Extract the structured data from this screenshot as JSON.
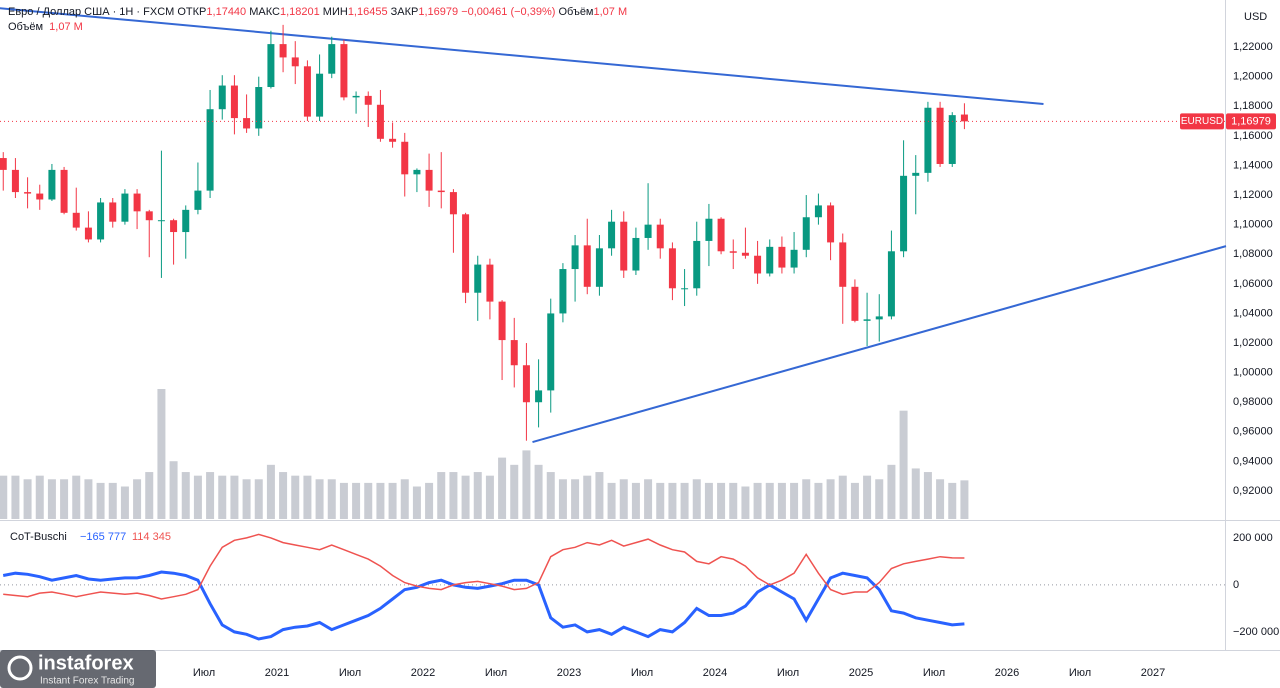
{
  "chart_data": [
    {
      "type": "candlestick",
      "header": {
        "title": "Евро / Доллар США · 1Н · FXCM",
        "fields": [
          {
            "name": "ОТКР",
            "value": "1,17440"
          },
          {
            "name": "МАКС",
            "value": "1,18201"
          },
          {
            "name": "МИН",
            "value": "1,16455"
          },
          {
            "name": "ЗАКР",
            "value": "1,16979"
          }
        ],
        "change": "−0,00461 (−0,39%)",
        "volume_name": "Объём",
        "volume_value": "1,07 M"
      },
      "currency": "USD",
      "last_price": {
        "symbol": "EURUSD",
        "label": "1,16979"
      },
      "x": [
        "2019-02",
        "2019-03",
        "2019-04",
        "2019-05",
        "2019-06",
        "2019-07",
        "2019-08",
        "2019-09",
        "2019-10",
        "2019-11",
        "2019-12",
        "2020-01",
        "2020-02",
        "2020-03",
        "2020-04",
        "2020-05",
        "2020-06",
        "2020-07",
        "2020-08",
        "2020-09",
        "2020-10",
        "2020-11",
        "2020-12",
        "2021-01",
        "2021-02",
        "2021-03",
        "2021-04",
        "2021-05",
        "2021-06",
        "2021-07",
        "2021-08",
        "2021-09",
        "2021-10",
        "2021-11",
        "2021-12",
        "2022-01",
        "2022-02",
        "2022-03",
        "2022-04",
        "2022-05",
        "2022-06",
        "2022-07",
        "2022-08",
        "2022-09",
        "2022-10",
        "2022-11",
        "2022-12",
        "2023-01",
        "2023-02",
        "2023-03",
        "2023-04",
        "2023-05",
        "2023-06",
        "2023-07",
        "2023-08",
        "2023-09",
        "2023-10",
        "2023-11",
        "2023-12",
        "2024-01",
        "2024-02",
        "2024-03",
        "2024-04",
        "2024-05",
        "2024-06",
        "2024-07",
        "2024-08",
        "2024-09",
        "2024-10",
        "2024-11",
        "2024-12",
        "2025-01",
        "2025-02",
        "2025-03",
        "2025-04",
        "2025-05",
        "2025-06",
        "2025-07",
        "2025-08",
        "2025-09"
      ],
      "open": [
        1.145,
        1.137,
        1.122,
        1.121,
        1.117,
        1.137,
        1.108,
        1.098,
        1.09,
        1.115,
        1.102,
        1.121,
        1.109,
        1.103,
        1.103,
        1.095,
        1.11,
        1.123,
        1.178,
        1.194,
        1.172,
        1.165,
        1.193,
        1.222,
        1.213,
        1.207,
        1.173,
        1.202,
        1.222,
        1.186,
        1.187,
        1.181,
        1.158,
        1.156,
        1.134,
        1.137,
        1.123,
        1.122,
        1.107,
        1.054,
        1.073,
        1.048,
        1.022,
        1.005,
        0.98,
        0.988,
        1.04,
        1.07,
        1.086,
        1.058,
        1.084,
        1.102,
        1.069,
        1.091,
        1.1,
        1.084,
        1.057,
        1.057,
        1.089,
        1.104,
        1.082,
        1.081,
        1.079,
        1.067,
        1.085,
        1.071,
        1.083,
        1.105,
        1.113,
        1.088,
        1.058,
        1.035,
        1.036,
        1.038,
        1.082,
        1.133,
        1.135,
        1.179,
        1.141,
        1.1744
      ],
      "high": [
        1.149,
        1.145,
        1.132,
        1.127,
        1.141,
        1.139,
        1.125,
        1.109,
        1.118,
        1.118,
        1.124,
        1.124,
        1.11,
        1.15,
        1.104,
        1.113,
        1.142,
        1.191,
        1.201,
        1.201,
        1.188,
        1.2,
        1.231,
        1.235,
        1.224,
        1.211,
        1.215,
        1.227,
        1.225,
        1.19,
        1.19,
        1.191,
        1.169,
        1.162,
        1.138,
        1.148,
        1.149,
        1.124,
        1.108,
        1.079,
        1.077,
        1.049,
        1.037,
        1.02,
        1.009,
        1.05,
        1.074,
        1.093,
        1.104,
        1.093,
        1.11,
        1.109,
        1.098,
        1.128,
        1.104,
        1.088,
        1.07,
        1.102,
        1.114,
        1.105,
        1.09,
        1.098,
        1.089,
        1.09,
        1.092,
        1.095,
        1.12,
        1.121,
        1.115,
        1.094,
        1.063,
        1.054,
        1.053,
        1.096,
        1.157,
        1.147,
        1.183,
        1.183,
        1.176,
        1.18201
      ],
      "low": [
        1.123,
        1.118,
        1.111,
        1.11,
        1.116,
        1.107,
        1.096,
        1.088,
        1.088,
        1.098,
        1.1,
        1.097,
        1.078,
        1.064,
        1.073,
        1.077,
        1.107,
        1.118,
        1.171,
        1.161,
        1.162,
        1.16,
        1.192,
        1.203,
        1.195,
        1.17,
        1.17,
        1.199,
        1.184,
        1.175,
        1.166,
        1.156,
        1.152,
        1.119,
        1.122,
        1.112,
        1.111,
        1.081,
        1.047,
        1.035,
        1.036,
        0.995,
        0.99,
        0.954,
        0.963,
        0.973,
        1.034,
        1.048,
        1.053,
        1.052,
        1.079,
        1.064,
        1.066,
        1.083,
        1.077,
        1.049,
        1.045,
        1.052,
        1.072,
        1.08,
        1.07,
        1.077,
        1.06,
        1.065,
        1.067,
        1.067,
        1.078,
        1.1,
        1.076,
        1.033,
        1.034,
        1.018,
        1.021,
        1.036,
        1.078,
        1.107,
        1.129,
        1.139,
        1.139,
        1.16455
      ],
      "close": [
        1.137,
        1.122,
        1.121,
        1.117,
        1.137,
        1.108,
        1.098,
        1.09,
        1.115,
        1.102,
        1.121,
        1.109,
        1.103,
        1.103,
        1.095,
        1.11,
        1.123,
        1.178,
        1.194,
        1.172,
        1.165,
        1.193,
        1.222,
        1.213,
        1.207,
        1.173,
        1.202,
        1.222,
        1.186,
        1.187,
        1.181,
        1.158,
        1.156,
        1.134,
        1.137,
        1.123,
        1.122,
        1.107,
        1.054,
        1.073,
        1.048,
        1.022,
        1.005,
        0.98,
        0.988,
        1.04,
        1.07,
        1.086,
        1.058,
        1.084,
        1.102,
        1.069,
        1.091,
        1.1,
        1.084,
        1.057,
        1.057,
        1.089,
        1.104,
        1.082,
        1.081,
        1.079,
        1.067,
        1.085,
        1.071,
        1.083,
        1.105,
        1.113,
        1.088,
        1.058,
        1.035,
        1.036,
        1.038,
        1.082,
        1.133,
        1.135,
        1.179,
        1.141,
        1.174,
        1.16979
      ],
      "volume": [
        1.2,
        1.2,
        1.1,
        1.2,
        1.1,
        1.1,
        1.2,
        1.1,
        1.0,
        1.0,
        0.9,
        1.1,
        1.3,
        3.6,
        1.6,
        1.3,
        1.2,
        1.3,
        1.2,
        1.2,
        1.1,
        1.1,
        1.5,
        1.3,
        1.2,
        1.2,
        1.1,
        1.1,
        1.0,
        1.0,
        1.0,
        1.0,
        1.0,
        1.1,
        0.9,
        1.0,
        1.3,
        1.3,
        1.2,
        1.3,
        1.2,
        1.7,
        1.5,
        1.9,
        1.5,
        1.3,
        1.1,
        1.1,
        1.2,
        1.3,
        1.0,
        1.1,
        1.0,
        1.1,
        1.0,
        1.0,
        1.0,
        1.1,
        1.0,
        1.0,
        1.0,
        0.9,
        1.0,
        1.0,
        1.0,
        1.0,
        1.1,
        1.0,
        1.1,
        1.2,
        1.0,
        1.2,
        1.1,
        1.5,
        3.0,
        1.4,
        1.3,
        1.1,
        1.0,
        1.07
      ],
      "up_color": "#089981",
      "down_color": "#f23645",
      "volume_color": "#c9ccd3",
      "ylim": [
        0.9011,
        1.2518
      ],
      "yticks": [
        {
          "value": 0.92,
          "label": "0,92000"
        },
        {
          "value": 0.94,
          "label": "0,94000"
        },
        {
          "value": 0.96,
          "label": "0,96000"
        },
        {
          "value": 0.98,
          "label": "0,98000"
        },
        {
          "value": 1.0,
          "label": "1,00000"
        },
        {
          "value": 1.02,
          "label": "1,02000"
        },
        {
          "value": 1.04,
          "label": "1,04000"
        },
        {
          "value": 1.06,
          "label": "1,06000"
        },
        {
          "value": 1.08,
          "label": "1,08000"
        },
        {
          "value": 1.1,
          "label": "1,10000"
        },
        {
          "value": 1.12,
          "label": "1,12000"
        },
        {
          "value": 1.14,
          "label": "1,14000"
        },
        {
          "value": 1.16,
          "label": "1,16000"
        },
        {
          "value": 1.18,
          "label": "1,18000"
        },
        {
          "value": 1.2,
          "label": "1,20000"
        },
        {
          "value": 1.22,
          "label": "1,22000"
        }
      ],
      "xticks": [
        {
          "value": "2020-07",
          "label": "Июл"
        },
        {
          "value": "2021-01",
          "label": "2021"
        },
        {
          "value": "2021-07",
          "label": "Июл"
        },
        {
          "value": "2022-01",
          "label": "2022"
        },
        {
          "value": "2022-07",
          "label": "Июл"
        },
        {
          "value": "2023-01",
          "label": "2023"
        },
        {
          "value": "2023-07",
          "label": "Июл"
        },
        {
          "value": "2024-01",
          "label": "2024"
        },
        {
          "value": "2024-07",
          "label": "Июл"
        },
        {
          "value": "2025-01",
          "label": "2025"
        },
        {
          "value": "2025-07",
          "label": "Июл"
        },
        {
          "value": "2026-01",
          "label": "2026"
        },
        {
          "value": "2026-07",
          "label": "Июл"
        },
        {
          "value": "2027-01",
          "label": "2027"
        }
      ],
      "trendline_color": "#3568d4",
      "trendlines": [
        {
          "from": {
            "x": "2019-02",
            "y": 1.2464
          },
          "to": {
            "x": "2026-04",
            "y": 1.1815
          }
        },
        {
          "from": {
            "x": "2022-10",
            "y": 0.9531
          },
          "to": {
            "x": "2027-07",
            "y": 1.0855
          }
        }
      ]
    },
    {
      "type": "line",
      "title": "CoT-Buschi",
      "x": [
        "2019-02",
        "2019-03",
        "2019-04",
        "2019-05",
        "2019-06",
        "2019-07",
        "2019-08",
        "2019-09",
        "2019-10",
        "2019-11",
        "2019-12",
        "2020-01",
        "2020-02",
        "2020-03",
        "2020-04",
        "2020-05",
        "2020-06",
        "2020-07",
        "2020-08",
        "2020-09",
        "2020-10",
        "2020-11",
        "2020-12",
        "2021-01",
        "2021-02",
        "2021-03",
        "2021-04",
        "2021-05",
        "2021-06",
        "2021-07",
        "2021-08",
        "2021-09",
        "2021-10",
        "2021-11",
        "2021-12",
        "2022-01",
        "2022-02",
        "2022-03",
        "2022-04",
        "2022-05",
        "2022-06",
        "2022-07",
        "2022-08",
        "2022-09",
        "2022-10",
        "2022-11",
        "2022-12",
        "2023-01",
        "2023-02",
        "2023-03",
        "2023-04",
        "2023-05",
        "2023-06",
        "2023-07",
        "2023-08",
        "2023-09",
        "2023-10",
        "2023-11",
        "2023-12",
        "2024-01",
        "2024-02",
        "2024-03",
        "2024-04",
        "2024-05",
        "2024-06",
        "2024-07",
        "2024-08",
        "2024-09",
        "2024-10",
        "2024-11",
        "2024-12",
        "2025-01",
        "2025-02",
        "2025-03",
        "2025-04",
        "2025-05",
        "2025-06",
        "2025-07",
        "2025-08",
        "2025-09"
      ],
      "series": [
        {
          "name": "−165 777",
          "color": "#2962ff",
          "values": [
            40000,
            50000,
            45000,
            35000,
            20000,
            30000,
            40000,
            25000,
            20000,
            25000,
            30000,
            30000,
            40000,
            55000,
            50000,
            40000,
            20000,
            -80000,
            -170000,
            -200000,
            -210000,
            -230000,
            -220000,
            -190000,
            -180000,
            -175000,
            -160000,
            -190000,
            -170000,
            -150000,
            -130000,
            -100000,
            -60000,
            -20000,
            -10000,
            10000,
            20000,
            0,
            -10000,
            -15000,
            -5000,
            5000,
            20000,
            20000,
            0,
            -140000,
            -180000,
            -170000,
            -200000,
            -190000,
            -210000,
            -180000,
            -200000,
            -220000,
            -190000,
            -200000,
            -160000,
            -100000,
            -130000,
            -130000,
            -120000,
            -90000,
            -30000,
            0,
            -30000,
            -60000,
            -150000,
            -60000,
            30000,
            50000,
            40000,
            30000,
            -20000,
            -110000,
            -120000,
            -140000,
            -150000,
            -160000,
            -170000,
            -165777
          ]
        },
        {
          "name": "114 345",
          "color": "#ef5350",
          "values": [
            -40000,
            -45000,
            -50000,
            -35000,
            -30000,
            -40000,
            -50000,
            -40000,
            -30000,
            -35000,
            -40000,
            -35000,
            -45000,
            -60000,
            -50000,
            -40000,
            -20000,
            80000,
            160000,
            190000,
            200000,
            215000,
            200000,
            180000,
            170000,
            160000,
            150000,
            170000,
            150000,
            130000,
            110000,
            80000,
            40000,
            10000,
            -5000,
            -15000,
            -20000,
            0,
            10000,
            15000,
            5000,
            -5000,
            -20000,
            -15000,
            10000,
            120000,
            150000,
            160000,
            180000,
            170000,
            190000,
            165000,
            180000,
            195000,
            170000,
            150000,
            140000,
            100000,
            90000,
            120000,
            110000,
            80000,
            30000,
            0,
            20000,
            50000,
            130000,
            50000,
            -20000,
            -40000,
            -30000,
            -30000,
            10000,
            70000,
            90000,
            100000,
            110000,
            120000,
            115000,
            114345
          ]
        }
      ],
      "ylim": [
        -277000,
        272000
      ],
      "yticks": [
        {
          "value": 200000,
          "label": "200 000"
        },
        0,
        {
          "value": -200000,
          "label": "−200 000"
        }
      ],
      "zero_line": true
    }
  ],
  "branding": {
    "name": "instaforex",
    "tagline": "Instant Forex Trading"
  }
}
